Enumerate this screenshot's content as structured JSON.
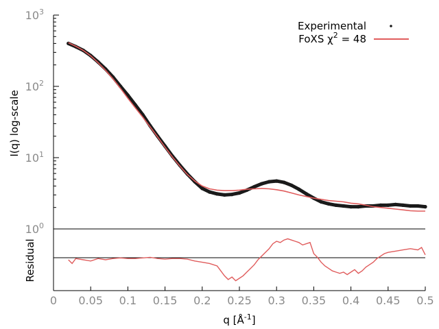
{
  "chart_data": [
    {
      "type": "scatter",
      "panel": "main",
      "ylabel": "I(q) log-scale",
      "yscale": "log",
      "xlim": [
        0,
        0.5
      ],
      "ylim": [
        1,
        1000
      ],
      "ytick_labels": [
        {
          "base": "10",
          "exp": "0",
          "value": 1
        },
        {
          "base": "10",
          "exp": "1",
          "value": 10
        },
        {
          "base": "10",
          "exp": "2",
          "value": 100
        },
        {
          "base": "10",
          "exp": "3",
          "value": 1000
        }
      ],
      "legend": {
        "placement": "top-right",
        "entries": [
          {
            "label": "Experimental",
            "marker": "point",
            "color": "#1a1a1a"
          },
          {
            "label": "FoXS χ² = 48",
            "label_main": "FoXS χ",
            "label_sup": "2",
            "label_tail": " = 48",
            "marker": "line",
            "color": "#e05c5c"
          }
        ]
      },
      "series": [
        {
          "name": "Experimental",
          "style": "points",
          "color": "#1a1a1a",
          "x": [
            0.02,
            0.03,
            0.04,
            0.05,
            0.06,
            0.07,
            0.08,
            0.09,
            0.1,
            0.11,
            0.12,
            0.13,
            0.14,
            0.15,
            0.16,
            0.17,
            0.18,
            0.19,
            0.2,
            0.21,
            0.22,
            0.23,
            0.24,
            0.25,
            0.26,
            0.27,
            0.28,
            0.29,
            0.3,
            0.31,
            0.32,
            0.33,
            0.34,
            0.35,
            0.36,
            0.37,
            0.38,
            0.39,
            0.4,
            0.41,
            0.42,
            0.43,
            0.44,
            0.45,
            0.46,
            0.47,
            0.48,
            0.49,
            0.5
          ],
          "y": [
            400,
            360,
            320,
            270,
            220,
            175,
            135,
            100,
            75,
            55,
            40,
            28,
            20,
            14.5,
            10.5,
            7.8,
            5.9,
            4.6,
            3.7,
            3.3,
            3.1,
            3.0,
            3.05,
            3.2,
            3.5,
            3.9,
            4.3,
            4.6,
            4.7,
            4.5,
            4.1,
            3.6,
            3.1,
            2.7,
            2.4,
            2.25,
            2.15,
            2.1,
            2.05,
            2.05,
            2.1,
            2.1,
            2.15,
            2.15,
            2.2,
            2.15,
            2.1,
            2.1,
            2.05
          ]
        },
        {
          "name": "FoXS",
          "style": "line",
          "color": "#e05c5c",
          "x": [
            0.02,
            0.03,
            0.04,
            0.05,
            0.06,
            0.07,
            0.08,
            0.09,
            0.1,
            0.11,
            0.12,
            0.13,
            0.14,
            0.15,
            0.16,
            0.17,
            0.18,
            0.19,
            0.2,
            0.21,
            0.22,
            0.23,
            0.24,
            0.25,
            0.26,
            0.27,
            0.28,
            0.29,
            0.3,
            0.31,
            0.32,
            0.33,
            0.34,
            0.35,
            0.36,
            0.37,
            0.38,
            0.39,
            0.4,
            0.41,
            0.42,
            0.43,
            0.44,
            0.45,
            0.46,
            0.47,
            0.48,
            0.49,
            0.5
          ],
          "y": [
            410,
            365,
            320,
            268,
            215,
            168,
            128,
            94,
            68,
            50,
            37,
            27,
            19.5,
            14,
            10.2,
            7.6,
            5.8,
            4.7,
            4.0,
            3.65,
            3.5,
            3.45,
            3.45,
            3.5,
            3.6,
            3.65,
            3.7,
            3.65,
            3.55,
            3.4,
            3.2,
            3.0,
            2.85,
            2.7,
            2.6,
            2.5,
            2.45,
            2.4,
            2.3,
            2.25,
            2.15,
            2.05,
            2.0,
            1.95,
            1.9,
            1.85,
            1.8,
            1.78,
            1.78
          ]
        }
      ]
    },
    {
      "type": "line",
      "panel": "residual",
      "title": "",
      "xlabel": "q [Å",
      "xlabel_sup": "-1",
      "xlabel_tail": "]",
      "ylabel": "Residual",
      "xlim": [
        0,
        0.5
      ],
      "ylim": [
        -2.5,
        2.5
      ],
      "xtick_values": [
        0,
        0.05,
        0.1,
        0.15,
        0.2,
        0.25,
        0.3,
        0.35,
        0.4,
        0.45,
        0.5
      ],
      "xtick_labels": [
        "0",
        "0.05",
        "0.1",
        "0.15",
        "0.2",
        "0.25",
        "0.3",
        "0.35",
        "0.4",
        "0.45",
        "0.5"
      ],
      "zero_line_color": "#000000",
      "series": [
        {
          "name": "Residual",
          "color": "#e05c5c",
          "x": [
            0.02,
            0.025,
            0.03,
            0.04,
            0.05,
            0.06,
            0.07,
            0.08,
            0.09,
            0.1,
            0.11,
            0.12,
            0.13,
            0.14,
            0.15,
            0.16,
            0.17,
            0.18,
            0.19,
            0.2,
            0.21,
            0.22,
            0.225,
            0.23,
            0.235,
            0.24,
            0.245,
            0.25,
            0.255,
            0.26,
            0.265,
            0.27,
            0.275,
            0.28,
            0.285,
            0.29,
            0.295,
            0.3,
            0.305,
            0.31,
            0.315,
            0.32,
            0.325,
            0.33,
            0.335,
            0.34,
            0.345,
            0.35,
            0.355,
            0.36,
            0.365,
            0.37,
            0.375,
            0.38,
            0.385,
            0.39,
            0.395,
            0.4,
            0.405,
            0.41,
            0.415,
            0.42,
            0.425,
            0.43,
            0.435,
            0.44,
            0.445,
            0.45,
            0.46,
            0.47,
            0.48,
            0.49,
            0.495,
            0.5
          ],
          "y": [
            0.0,
            -0.3,
            0.1,
            0.0,
            -0.1,
            0.1,
            0.0,
            0.1,
            0.15,
            0.1,
            0.1,
            0.15,
            0.2,
            0.1,
            0.05,
            0.1,
            0.1,
            0.05,
            -0.1,
            -0.2,
            -0.3,
            -0.5,
            -0.9,
            -1.3,
            -1.6,
            -1.4,
            -1.7,
            -1.5,
            -1.3,
            -1.0,
            -0.7,
            -0.4,
            0.0,
            0.3,
            0.6,
            0.9,
            1.3,
            1.5,
            1.4,
            1.6,
            1.7,
            1.6,
            1.5,
            1.4,
            1.2,
            1.3,
            1.4,
            0.5,
            0.2,
            -0.2,
            -0.5,
            -0.7,
            -0.9,
            -1.0,
            -1.1,
            -1.0,
            -1.2,
            -1.0,
            -0.8,
            -1.1,
            -0.9,
            -0.6,
            -0.4,
            -0.2,
            0.1,
            0.3,
            0.5,
            0.6,
            0.7,
            0.8,
            0.9,
            0.8,
            1.0,
            0.4
          ]
        }
      ]
    }
  ]
}
